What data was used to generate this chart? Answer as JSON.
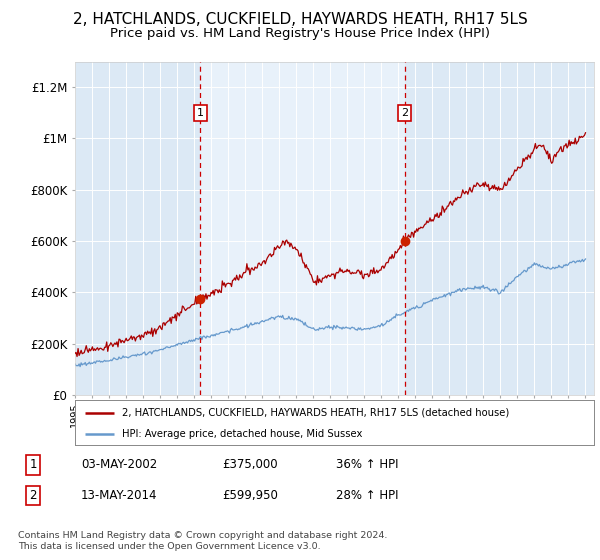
{
  "title": "2, HATCHLANDS, CUCKFIELD, HAYWARDS HEATH, RH17 5LS",
  "subtitle": "Price paid vs. HM Land Registry's House Price Index (HPI)",
  "title_fontsize": 11,
  "subtitle_fontsize": 9.5,
  "plot_bg_color": "#dce9f5",
  "plot_bg_color2": "#e8f1fa",
  "ylabel_ticks": [
    "£0",
    "£200K",
    "£400K",
    "£600K",
    "£800K",
    "£1M",
    "£1.2M"
  ],
  "ytick_values": [
    0,
    200000,
    400000,
    600000,
    800000,
    1000000,
    1200000
  ],
  "ylim": [
    0,
    1300000
  ],
  "year_start": 1995,
  "year_end": 2025,
  "sale1_date": 2002.37,
  "sale1_price": 375000,
  "sale1_label": "1",
  "sale2_date": 2014.37,
  "sale2_price": 599950,
  "sale2_label": "2",
  "red_line_color": "#aa0000",
  "blue_line_color": "#6699cc",
  "vline_color": "#cc0000",
  "annotation_box_color": "#cc0000",
  "dot_color": "#cc2200",
  "legend_label_red": "2, HATCHLANDS, CUCKFIELD, HAYWARDS HEATH, RH17 5LS (detached house)",
  "legend_label_blue": "HPI: Average price, detached house, Mid Sussex",
  "footnote1": "Contains HM Land Registry data © Crown copyright and database right 2024.",
  "footnote2": "This data is licensed under the Open Government Licence v3.0.",
  "table_row1": [
    "1",
    "03-MAY-2002",
    "£375,000",
    "36% ↑ HPI"
  ],
  "table_row2": [
    "2",
    "13-MAY-2014",
    "£599,950",
    "28% ↑ HPI"
  ],
  "blue_anchors_x": [
    1995,
    1997,
    1999,
    2000,
    2001,
    2002,
    2003,
    2004,
    2005,
    2006,
    2007,
    2008,
    2009,
    2010,
    2011,
    2012,
    2013,
    2014,
    2015,
    2016,
    2017,
    2018,
    2019,
    2020,
    2021,
    2022,
    2023,
    2024,
    2025
  ],
  "blue_anchors_y": [
    115000,
    135000,
    158000,
    175000,
    195000,
    215000,
    230000,
    248000,
    265000,
    285000,
    305000,
    295000,
    255000,
    265000,
    260000,
    255000,
    270000,
    310000,
    340000,
    370000,
    395000,
    415000,
    420000,
    400000,
    460000,
    510000,
    490000,
    510000,
    530000
  ],
  "red_anchors_x": [
    1995,
    1997,
    1999,
    2000,
    2001,
    2002,
    2002.37,
    2003,
    2004,
    2005,
    2006,
    2007,
    2007.5,
    2008,
    2008.5,
    2009,
    2010,
    2011,
    2012,
    2013,
    2014,
    2014.37,
    2015,
    2016,
    2017,
    2018,
    2019,
    2020,
    2021,
    2022,
    2022.5,
    2023,
    2023.5,
    2024,
    2025
  ],
  "red_anchors_y": [
    165000,
    190000,
    235000,
    260000,
    310000,
    360000,
    375000,
    395000,
    430000,
    475000,
    510000,
    580000,
    600000,
    570000,
    510000,
    445000,
    465000,
    490000,
    468000,
    490000,
    570000,
    599950,
    635000,
    680000,
    740000,
    790000,
    820000,
    800000,
    880000,
    960000,
    980000,
    910000,
    960000,
    980000,
    1010000
  ]
}
